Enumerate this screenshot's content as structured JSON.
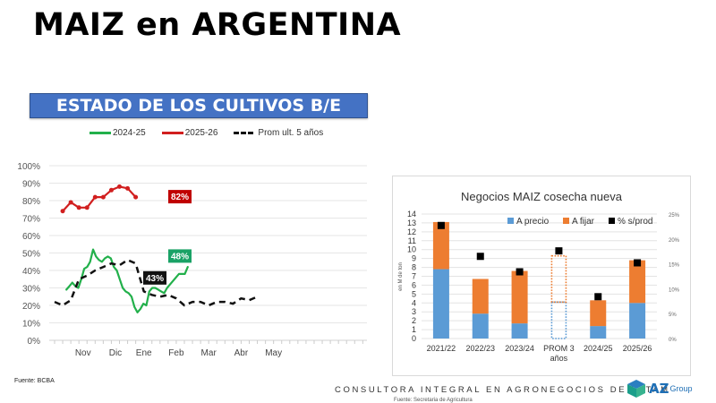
{
  "page": {
    "title": "MAIZ en ARGENTINA",
    "banner": "ESTADO DE LOS CULTIVOS B/E MAIZ",
    "source_left": "Fuente: BCBA",
    "footer_tagline": "CONSULTORA INTEGRAL EN AGRONEGOCIOS DE LATAM",
    "footer_source": "Fuente: Secretaria de Agricultura",
    "logo_text": "AZ",
    "logo_sub": "Group"
  },
  "chart_data": [
    {
      "type": "line",
      "title": "ESTADO DE LOS CULTIVOS B/E MAIZ",
      "xlabel": "",
      "ylabel": "",
      "ylim": [
        0,
        100
      ],
      "yticks": [
        "0%",
        "10%",
        "20%",
        "30%",
        "40%",
        "50%",
        "60%",
        "70%",
        "80%",
        "90%",
        "100%"
      ],
      "x_month_labels": [
        "Nov",
        "Dic",
        "Ene",
        "Feb",
        "Mar",
        "Abr",
        "May"
      ],
      "x_unit": "weeks from mid-October",
      "grid": true,
      "legend_position": "top",
      "series": [
        {
          "name": "2024-25",
          "color": "#22b04b",
          "style": "solid",
          "x": [
            2,
            2.5,
            3,
            3.5,
            4,
            4.5,
            5,
            5.5,
            6,
            6.5,
            7,
            7.5,
            8,
            8.5,
            9,
            9.5,
            10,
            10.5,
            11,
            11.5,
            12,
            12.5,
            13,
            13.5,
            14,
            14.5,
            15,
            15.5,
            16,
            16.5,
            17,
            17.5,
            18,
            18.5,
            19,
            19.5,
            20,
            20.5,
            21,
            21.5,
            22,
            22.5,
            23,
            23.5,
            24,
            24.5,
            25,
            25.5,
            26,
            26.5
          ],
          "values": [
            29,
            31,
            33,
            31,
            30,
            35,
            41,
            42,
            45,
            52,
            48,
            46,
            45,
            47,
            48,
            47,
            42,
            40,
            35,
            30,
            28,
            27,
            25,
            19,
            16,
            18,
            21,
            20,
            28,
            30,
            30,
            29,
            28,
            27,
            30,
            32,
            34,
            36,
            38,
            38,
            38,
            42,
            null,
            null,
            null,
            null,
            null,
            null,
            null,
            null
          ]
        },
        {
          "name": "2025-26",
          "color": "#d11f1f",
          "style": "solid-markers",
          "x": [
            1,
            2,
            3,
            4,
            5,
            6,
            7,
            8,
            9,
            10,
            11,
            12
          ],
          "values": [
            74,
            79,
            76,
            76,
            82,
            82,
            86,
            88,
            87,
            82,
            null,
            null
          ],
          "end_label": "82%"
        },
        {
          "name": "Prom ult. 5 años",
          "color": "#111111",
          "style": "dashed",
          "x": [
            0,
            1,
            2,
            3,
            4,
            5,
            6,
            7,
            8,
            9,
            10,
            11,
            12,
            13,
            14,
            15,
            16,
            17,
            18,
            19,
            20,
            21,
            22,
            23,
            24,
            25,
            26,
            27,
            28,
            29,
            30,
            31,
            32,
            33,
            34,
            35,
            36,
            37,
            38
          ],
          "values": [
            22,
            20,
            23,
            35,
            37,
            40,
            42,
            44,
            43,
            46,
            44,
            28,
            26,
            25,
            26,
            24,
            20,
            22,
            22,
            20,
            22,
            22,
            21,
            24,
            23,
            25,
            null,
            null,
            null,
            null,
            null,
            null,
            null,
            null,
            null,
            null,
            null,
            null,
            null
          ]
        }
      ],
      "annotations": [
        {
          "text": "82%",
          "series": "2025-26",
          "color": "#c00000"
        },
        {
          "text": "48%",
          "series": "2024-25",
          "color": "#1aa266"
        },
        {
          "text": "43%",
          "series": "Prom ult. 5 años",
          "color": "#111111"
        }
      ]
    },
    {
      "type": "bar",
      "stacked": true,
      "title": "Negocios MAIZ cosecha nueva",
      "ylabel": "en M de ton",
      "ylim": [
        0,
        14
      ],
      "y2lim": [
        0,
        25
      ],
      "yticks": [
        "0",
        "1",
        "2",
        "3",
        "4",
        "5",
        "6",
        "7",
        "8",
        "9",
        "10",
        "11",
        "12",
        "13",
        "14"
      ],
      "y2ticks": [
        "0%",
        "5%",
        "10%",
        "15%",
        "20%",
        "25%"
      ],
      "categories": [
        "2021/22",
        "2022/23",
        "2023/24",
        "PROM 3 años",
        "2024/25",
        "2025/26"
      ],
      "series": [
        {
          "name": "A precio",
          "color": "#5b9bd5",
          "values": [
            7.8,
            2.8,
            1.7,
            4.1,
            1.4,
            4.0
          ]
        },
        {
          "name": "A fijar",
          "color": "#ed7d31",
          "values": [
            5.3,
            3.9,
            5.9,
            5.2,
            2.9,
            4.8
          ]
        },
        {
          "name": "% s/prod",
          "color": "#000000",
          "axis": "secondary",
          "type": "marker",
          "values": [
            22.7,
            16.5,
            13.4,
            17.6,
            8.4,
            15.2
          ]
        }
      ],
      "dotted_categories": [
        "PROM 3 años"
      ],
      "legend_position": "top-right"
    }
  ]
}
